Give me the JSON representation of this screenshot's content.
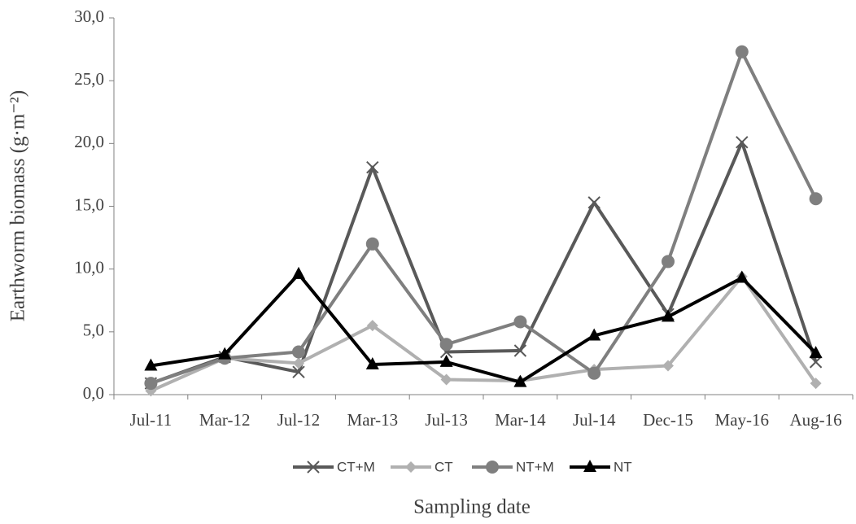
{
  "chart_data": {
    "type": "line",
    "x_label": "Sampling date",
    "y_label": "Earthworm biomass (g·m⁻²)",
    "categories": [
      "Jul-11",
      "Mar-12",
      "Jul-12",
      "Mar-13",
      "Jul-13",
      "Mar-14",
      "Jul-14",
      "Dec-15",
      "May-16",
      "Aug-16"
    ],
    "series": [
      {
        "name": "CT+M",
        "color": "#595959",
        "marker": "x",
        "values": [
          0.9,
          3.0,
          1.8,
          18.1,
          3.4,
          3.5,
          15.3,
          6.4,
          20.1,
          2.6
        ]
      },
      {
        "name": "CT",
        "color": "#b0b0b0",
        "marker": "diamond",
        "values": [
          0.3,
          2.9,
          2.5,
          5.5,
          1.2,
          1.1,
          2.0,
          2.3,
          9.4,
          0.9
        ]
      },
      {
        "name": "NT+M",
        "color": "#7f7f7f",
        "marker": "circle",
        "values": [
          0.9,
          2.9,
          3.4,
          12.0,
          4.0,
          5.8,
          1.7,
          10.6,
          27.3,
          15.6
        ]
      },
      {
        "name": "NT",
        "color": "#000000",
        "marker": "triangle",
        "values": [
          2.3,
          3.2,
          9.6,
          2.4,
          2.6,
          1.0,
          4.7,
          6.2,
          9.3,
          3.3
        ]
      }
    ],
    "ylim": [
      0,
      30
    ],
    "yticks": [
      {
        "value": 0,
        "label": "0,0"
      },
      {
        "value": 5,
        "label": "5,0"
      },
      {
        "value": 10,
        "label": "10,0"
      },
      {
        "value": 15,
        "label": "15,0"
      },
      {
        "value": 20,
        "label": "20,0"
      },
      {
        "value": 25,
        "label": "25,0"
      },
      {
        "value": 30,
        "label": "30,0"
      }
    ],
    "grid": false,
    "legend": "bottom"
  }
}
